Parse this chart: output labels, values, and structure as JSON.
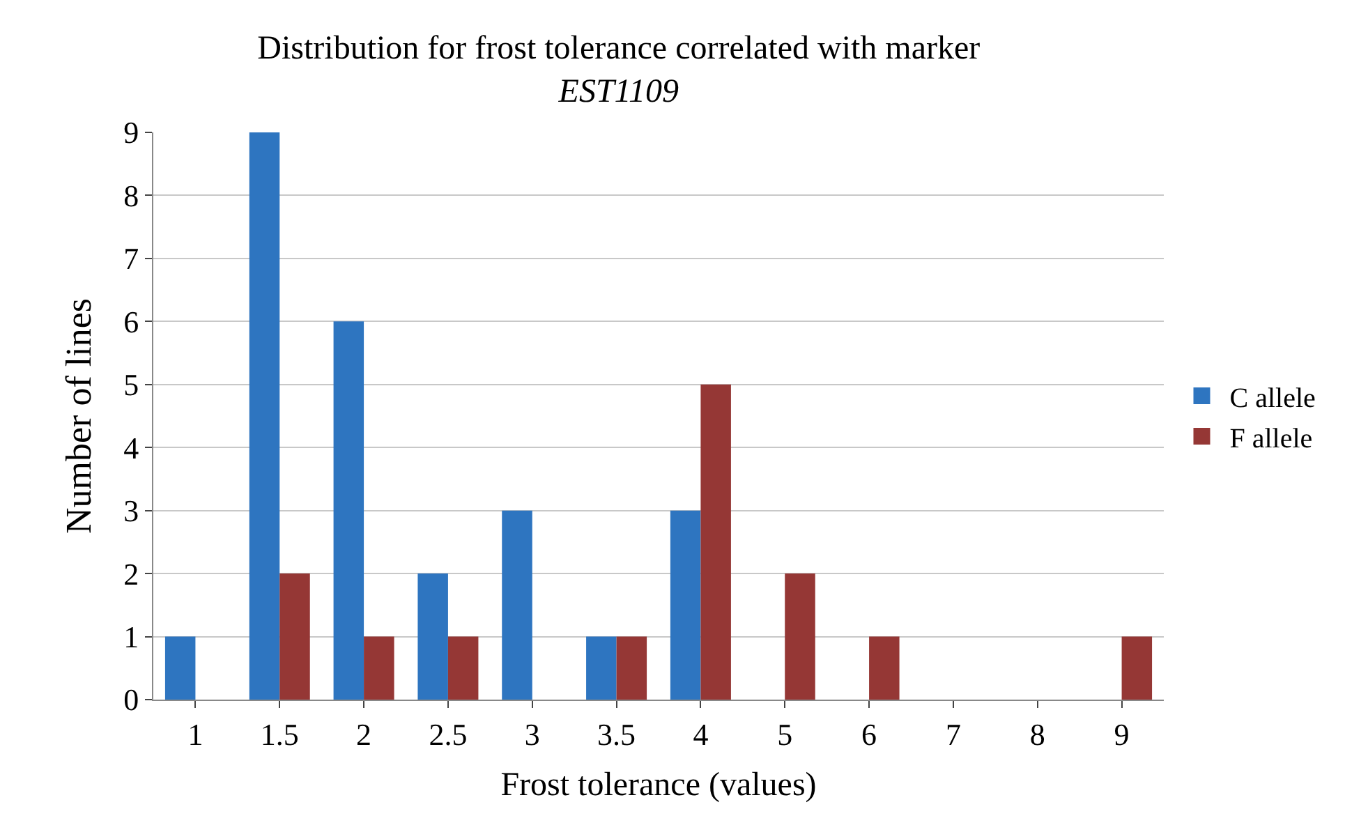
{
  "chart_data": {
    "type": "bar",
    "title": "Distribution for frost tolerance correlated with marker",
    "subtitle": "EST1109",
    "xlabel": "Frost tolerance (values)",
    "ylabel": "Number of lines",
    "categories": [
      "1",
      "1.5",
      "2",
      "2.5",
      "3",
      "3.5",
      "4",
      "5",
      "6",
      "7",
      "8",
      "9"
    ],
    "series": [
      {
        "name": "C allele",
        "color": "#2e75c0",
        "values": [
          1,
          9,
          6,
          2,
          3,
          1,
          3,
          0,
          0,
          0,
          0,
          0
        ]
      },
      {
        "name": "F allele",
        "color": "#953735",
        "values": [
          0,
          2,
          1,
          1,
          0,
          1,
          5,
          2,
          1,
          0,
          0,
          1
        ]
      }
    ],
    "ylim": [
      0,
      9
    ],
    "yticks": [
      0,
      1,
      2,
      3,
      4,
      5,
      6,
      7,
      8,
      9
    ],
    "grid": "y",
    "legend": "right"
  }
}
